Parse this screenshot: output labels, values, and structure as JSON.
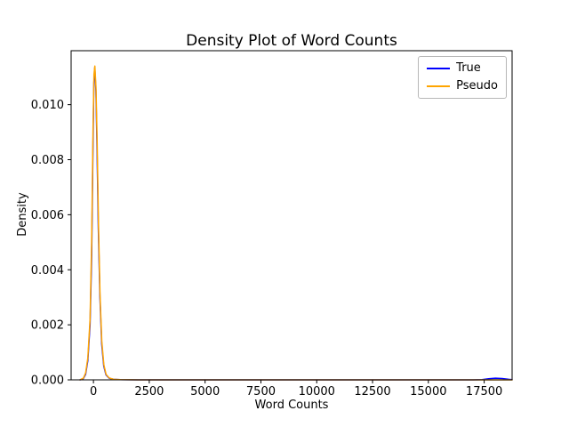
{
  "figure": {
    "background": "#ffffff"
  },
  "chart_data": {
    "type": "line",
    "title": "Density Plot of Word Counts",
    "xlabel": "Word Counts",
    "ylabel": "Density",
    "xlim": [
      -1000,
      18750
    ],
    "ylim": [
      0,
      0.01196
    ],
    "grid": false,
    "xticks": [
      0,
      2500,
      5000,
      7500,
      10000,
      12500,
      15000,
      17500
    ],
    "xtick_labels": [
      "0",
      "2500",
      "5000",
      "7500",
      "10000",
      "12500",
      "15000",
      "17500"
    ],
    "yticks": [
      0.0,
      0.002,
      0.004,
      0.006,
      0.008,
      0.01
    ],
    "ytick_labels": [
      "0.000",
      "0.002",
      "0.004",
      "0.006",
      "0.008",
      "0.010"
    ],
    "legend": {
      "position": "upper right",
      "entries": [
        {
          "label": "True",
          "color": "#0000ff"
        },
        {
          "label": "Pseudo",
          "color": "#ffa500"
        }
      ]
    },
    "series": [
      {
        "name": "True",
        "color": "#0000ff",
        "points": [
          [
            -600,
            0.0
          ],
          [
            -450,
            5e-05
          ],
          [
            -350,
            0.0002
          ],
          [
            -250,
            0.0007
          ],
          [
            -150,
            0.002
          ],
          [
            -80,
            0.0045
          ],
          [
            -20,
            0.0085
          ],
          [
            20,
            0.0108
          ],
          [
            60,
            0.01135
          ],
          [
            110,
            0.0105
          ],
          [
            160,
            0.0085
          ],
          [
            220,
            0.0055
          ],
          [
            290,
            0.003
          ],
          [
            370,
            0.0013
          ],
          [
            460,
            0.0005
          ],
          [
            560,
            0.00018
          ],
          [
            700,
            6e-05
          ],
          [
            900,
            2e-05
          ],
          [
            1200,
            1e-05
          ],
          [
            2000,
            0.0
          ],
          [
            5000,
            0.0
          ],
          [
            10000,
            0.0
          ],
          [
            15000,
            0.0
          ],
          [
            17000,
            0.0
          ],
          [
            17400,
            1e-05
          ],
          [
            17700,
            4e-05
          ],
          [
            18000,
            6e-05
          ],
          [
            18300,
            5e-05
          ],
          [
            18600,
            2e-05
          ],
          [
            18750,
            1e-05
          ]
        ]
      },
      {
        "name": "Pseudo",
        "color": "#ffa500",
        "points": [
          [
            -600,
            0.0
          ],
          [
            -450,
            6e-05
          ],
          [
            -350,
            0.00025
          ],
          [
            -250,
            0.0008
          ],
          [
            -150,
            0.0022
          ],
          [
            -80,
            0.005
          ],
          [
            -20,
            0.009
          ],
          [
            25,
            0.0111
          ],
          [
            65,
            0.0114
          ],
          [
            115,
            0.0106
          ],
          [
            165,
            0.0086
          ],
          [
            225,
            0.0056
          ],
          [
            295,
            0.0031
          ],
          [
            375,
            0.0014
          ],
          [
            465,
            0.00055
          ],
          [
            565,
            0.0002
          ],
          [
            700,
            7e-05
          ],
          [
            900,
            2e-05
          ],
          [
            1200,
            1e-05
          ],
          [
            2000,
            0.0
          ],
          [
            5000,
            0.0
          ],
          [
            10000,
            0.0
          ],
          [
            15000,
            0.0
          ],
          [
            18750,
            0.0
          ]
        ]
      }
    ]
  }
}
